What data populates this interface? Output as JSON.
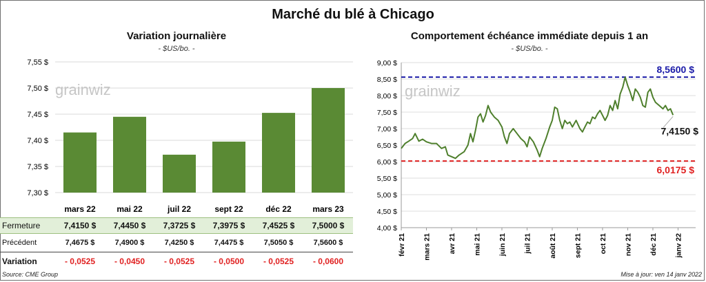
{
  "title": "Marché du blé à Chicago",
  "left": {
    "title": "Variation journalière",
    "unit": "- $US/bo. -",
    "watermark": "grainwiz",
    "chart_data": {
      "type": "bar",
      "categories": [
        "mars 22",
        "mai 22",
        "juil 22",
        "sept 22",
        "déc 22",
        "mars 23"
      ],
      "values": [
        7.415,
        7.445,
        7.3725,
        7.3975,
        7.4525,
        7.5
      ],
      "ylim": [
        7.3,
        7.55
      ],
      "yticks": [
        7.3,
        7.35,
        7.4,
        7.45,
        7.5,
        7.55
      ],
      "ytick_labels": [
        "7,30 $",
        "7,35 $",
        "7,40 $",
        "7,45 $",
        "7,50 $",
        "7,55 $"
      ],
      "grid": true,
      "bar_color": "#5a8a34"
    },
    "table": {
      "columns": [
        "mars 22",
        "mai 22",
        "juil 22",
        "sept 22",
        "déc 22",
        "mars 23"
      ],
      "rows": [
        {
          "label": "Fermeture",
          "values": [
            "7,4150  $",
            "7,4450  $",
            "7,3725  $",
            "7,3975  $",
            "7,4525  $",
            "7,5000  $"
          ]
        },
        {
          "label": "Précédent",
          "values": [
            "7,4675  $",
            "7,4900  $",
            "7,4250  $",
            "7,4475  $",
            "7,5050  $",
            "7,5600  $"
          ]
        },
        {
          "label": "Variation",
          "values": [
            "- 0,0525",
            "- 0,0450",
            "- 0,0525",
            "- 0,0500",
            "- 0,0525",
            "- 0,0600"
          ]
        }
      ]
    }
  },
  "right": {
    "title": "Comportement  échéance immédiate depuis 1 an",
    "unit": "- $US/bo. -",
    "watermark": "grainwiz",
    "chart_data": {
      "type": "line",
      "x_labels": [
        "févr 21",
        "mars 21",
        "avr 21",
        "mai 21",
        "juin 21",
        "juil 21",
        "août 21",
        "sept 21",
        "oct 21",
        "nov 21",
        "déc 21",
        "janv 22"
      ],
      "ylim": [
        4.0,
        9.0
      ],
      "yticks": [
        4.0,
        4.5,
        5.0,
        5.5,
        6.0,
        6.5,
        7.0,
        7.5,
        8.0,
        8.5,
        9.0
      ],
      "ytick_labels": [
        "4,00 $",
        "4,50 $",
        "5,00 $",
        "5,50 $",
        "6,00 $",
        "6,50 $",
        "7,00 $",
        "7,50 $",
        "8,00 $",
        "8,50 $",
        "9,00 $"
      ],
      "x_range": [
        0,
        11.7
      ],
      "series": [
        {
          "values": [
            [
              0.0,
              6.4
            ],
            [
              0.15,
              6.55
            ],
            [
              0.3,
              6.62
            ],
            [
              0.45,
              6.7
            ],
            [
              0.55,
              6.85
            ],
            [
              0.7,
              6.62
            ],
            [
              0.85,
              6.68
            ],
            [
              1.0,
              6.6
            ],
            [
              1.2,
              6.55
            ],
            [
              1.4,
              6.55
            ],
            [
              1.6,
              6.4
            ],
            [
              1.75,
              6.45
            ],
            [
              1.85,
              6.2
            ],
            [
              2.0,
              6.15
            ],
            [
              2.15,
              6.1
            ],
            [
              2.3,
              6.2
            ],
            [
              2.5,
              6.3
            ],
            [
              2.65,
              6.5
            ],
            [
              2.75,
              6.85
            ],
            [
              2.85,
              6.6
            ],
            [
              2.95,
              6.95
            ],
            [
              3.05,
              7.35
            ],
            [
              3.15,
              7.45
            ],
            [
              3.25,
              7.2
            ],
            [
              3.35,
              7.4
            ],
            [
              3.45,
              7.7
            ],
            [
              3.55,
              7.5
            ],
            [
              3.7,
              7.35
            ],
            [
              3.85,
              7.25
            ],
            [
              4.0,
              7.05
            ],
            [
              4.1,
              6.75
            ],
            [
              4.2,
              6.55
            ],
            [
              4.3,
              6.85
            ],
            [
              4.45,
              7.0
            ],
            [
              4.6,
              6.85
            ],
            [
              4.75,
              6.7
            ],
            [
              4.9,
              6.6
            ],
            [
              5.0,
              6.45
            ],
            [
              5.1,
              6.75
            ],
            [
              5.25,
              6.6
            ],
            [
              5.4,
              6.35
            ],
            [
              5.5,
              6.15
            ],
            [
              5.6,
              6.4
            ],
            [
              5.75,
              6.7
            ],
            [
              5.9,
              7.05
            ],
            [
              6.0,
              7.25
            ],
            [
              6.1,
              7.65
            ],
            [
              6.2,
              7.6
            ],
            [
              6.3,
              7.25
            ],
            [
              6.4,
              7.0
            ],
            [
              6.5,
              7.25
            ],
            [
              6.6,
              7.15
            ],
            [
              6.7,
              7.2
            ],
            [
              6.8,
              7.05
            ],
            [
              6.95,
              7.25
            ],
            [
              7.1,
              7.0
            ],
            [
              7.2,
              6.9
            ],
            [
              7.3,
              7.05
            ],
            [
              7.4,
              7.2
            ],
            [
              7.5,
              7.15
            ],
            [
              7.6,
              7.35
            ],
            [
              7.7,
              7.3
            ],
            [
              7.8,
              7.45
            ],
            [
              7.9,
              7.55
            ],
            [
              8.0,
              7.4
            ],
            [
              8.1,
              7.25
            ],
            [
              8.2,
              7.4
            ],
            [
              8.3,
              7.7
            ],
            [
              8.4,
              7.55
            ],
            [
              8.5,
              7.85
            ],
            [
              8.6,
              7.6
            ],
            [
              8.7,
              8.05
            ],
            [
              8.8,
              8.25
            ],
            [
              8.9,
              8.56
            ],
            [
              9.0,
              8.3
            ],
            [
              9.1,
              8.1
            ],
            [
              9.2,
              7.85
            ],
            [
              9.3,
              8.2
            ],
            [
              9.4,
              8.1
            ],
            [
              9.5,
              7.95
            ],
            [
              9.6,
              7.7
            ],
            [
              9.7,
              7.65
            ],
            [
              9.8,
              8.1
            ],
            [
              9.9,
              8.2
            ],
            [
              10.0,
              7.95
            ],
            [
              10.1,
              7.8
            ],
            [
              10.25,
              7.7
            ],
            [
              10.4,
              7.6
            ],
            [
              10.5,
              7.7
            ],
            [
              10.6,
              7.55
            ],
            [
              10.7,
              7.6
            ],
            [
              10.8,
              7.41
            ]
          ]
        }
      ],
      "annotations": [
        {
          "label": "8,5600  $",
          "value": 8.56,
          "color": "#1a1aa8"
        },
        {
          "label": "6,0175  $",
          "value": 6.0175,
          "color": "#e02020"
        },
        {
          "label": "7,4150 $",
          "value": 7.415,
          "color": "#111111"
        }
      ],
      "line_color": "#4e7f2c"
    }
  },
  "footer": {
    "source": "Source: CME Group",
    "updated": "Mise à jour: ven 14 janv 2022"
  }
}
